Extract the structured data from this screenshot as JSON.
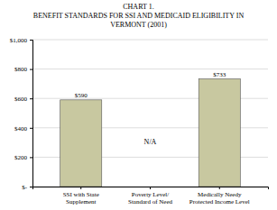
{
  "chart_data": {
    "type": "bar",
    "title": [
      "CHART 1.",
      "BENEFIT STANDARDS FOR SSI AND MEDICAID ELIGIBILITY IN",
      "VERMONT (2001)"
    ],
    "categories": [
      "SSI with State\nSupplement",
      "Poverty Level/\nStandard of Need",
      "Medically Needy\nProtected Income Level"
    ],
    "values": [
      590,
      null,
      733
    ],
    "value_labels": [
      "$590",
      "N/A",
      "$733"
    ],
    "data_labels": true,
    "color": "#c8c8a0",
    "ylim": [
      0,
      1000
    ],
    "yticks": [
      {
        "value": 0,
        "label": "$-"
      },
      {
        "value": 200,
        "label": "$200"
      },
      {
        "value": 400,
        "label": "$400"
      },
      {
        "value": 600,
        "label": "$600"
      },
      {
        "value": 800,
        "label": "$800"
      },
      {
        "value": 1000,
        "label": "$1,000"
      }
    ],
    "grid": true
  }
}
